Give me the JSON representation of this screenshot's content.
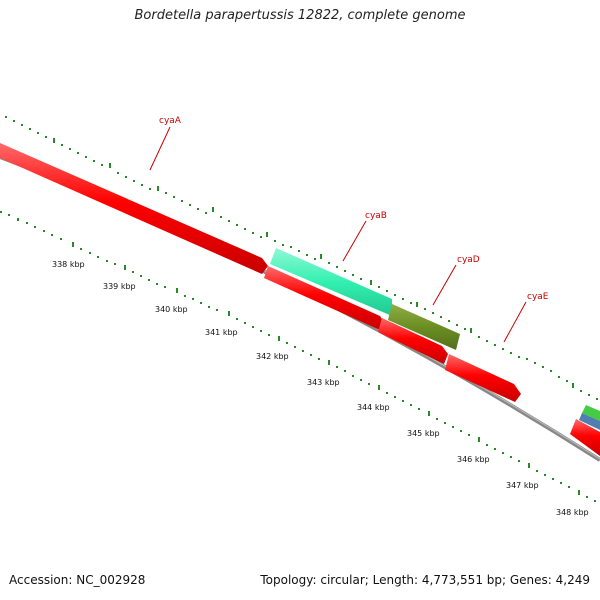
{
  "title": "Bordetella parapertussis 12822, complete genome",
  "footer": {
    "accession": "Accession: NC_002928",
    "summary": "Topology: circular; Length: 4,773,551 bp; Genes: 4,249"
  },
  "ruler": [
    "338 kbp",
    "339 kbp",
    "340 kbp",
    "341 kbp",
    "342 kbp",
    "343 kbp",
    "344 kbp",
    "345 kbp",
    "346 kbp",
    "347 kbp",
    "348 kbp"
  ],
  "genes": [
    {
      "name": "cyaA",
      "color": "#ff0000"
    },
    {
      "name": "cyaB",
      "color": "#33f0b0"
    },
    {
      "name": "cyaD",
      "color": "#6b8e23"
    },
    {
      "name": "cyaE",
      "color": "#ff0000"
    }
  ],
  "colors": {
    "backbone": "#888888",
    "tick_green": "#2a8a2a",
    "label_red": "#cc0000",
    "gene_red": "#ff0000",
    "gene_cyan": "#33f0b0",
    "gene_olive": "#6b8e23",
    "gene_green": "#44cc44",
    "gene_blue": "#4f7fb0"
  }
}
